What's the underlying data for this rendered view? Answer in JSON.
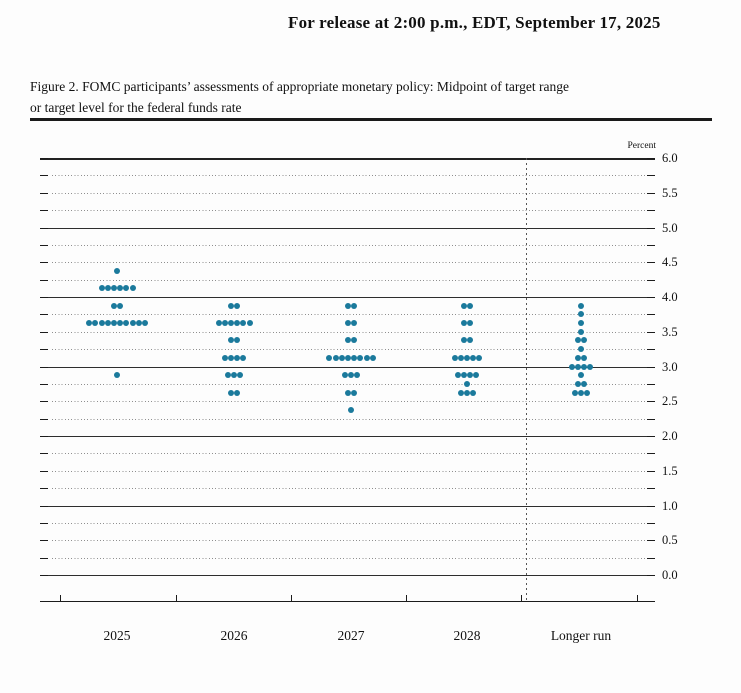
{
  "header": {
    "release_line": "For release at 2:00 p.m., EDT, September 17, 2025"
  },
  "figure": {
    "caption_line1": "Figure 2. FOMC participants’ assessments of appropriate monetary policy: Midpoint of target range",
    "caption_line2": "or target level for the federal funds rate"
  },
  "chart_data": {
    "type": "scatter",
    "title": "FOMC dot plot: midpoint of target range or target level for the federal funds rate",
    "ylabel": "Percent",
    "ylim": [
      0.0,
      6.0
    ],
    "ytick_labels": [
      "6.0",
      "5.5",
      "5.0",
      "4.5",
      "4.0",
      "3.5",
      "3.0",
      "2.5",
      "2.0",
      "1.5",
      "1.0",
      "0.5",
      "0.0"
    ],
    "grid": "dotted line every 0.25, solid line at integer values",
    "legend_position": "none",
    "dot_color": "#1b7a9c",
    "categories": [
      "2025",
      "2026",
      "2027",
      "2028",
      "Longer run"
    ],
    "series": [
      {
        "category": "2025",
        "dots": [
          {
            "rate": 4.375,
            "count": 1
          },
          {
            "rate": 4.125,
            "count": 6
          },
          {
            "rate": 3.875,
            "count": 2
          },
          {
            "rate": 3.625,
            "count": 10
          },
          {
            "rate": 2.875,
            "count": 1
          }
        ]
      },
      {
        "category": "2026",
        "dots": [
          {
            "rate": 3.875,
            "count": 2
          },
          {
            "rate": 3.625,
            "count": 6
          },
          {
            "rate": 3.375,
            "count": 2
          },
          {
            "rate": 3.125,
            "count": 4
          },
          {
            "rate": 2.875,
            "count": 3
          },
          {
            "rate": 2.625,
            "count": 2
          }
        ]
      },
      {
        "category": "2027",
        "dots": [
          {
            "rate": 3.875,
            "count": 2
          },
          {
            "rate": 3.625,
            "count": 2
          },
          {
            "rate": 3.375,
            "count": 2
          },
          {
            "rate": 3.125,
            "count": 8
          },
          {
            "rate": 2.875,
            "count": 3
          },
          {
            "rate": 2.625,
            "count": 2
          },
          {
            "rate": 2.375,
            "count": 1
          }
        ]
      },
      {
        "category": "2028",
        "dots": [
          {
            "rate": 3.875,
            "count": 2
          },
          {
            "rate": 3.625,
            "count": 2
          },
          {
            "rate": 3.375,
            "count": 2
          },
          {
            "rate": 3.125,
            "count": 5
          },
          {
            "rate": 2.875,
            "count": 4
          },
          {
            "rate": 2.75,
            "count": 1
          },
          {
            "rate": 2.625,
            "count": 3
          }
        ]
      },
      {
        "category": "Longer run",
        "dots": [
          {
            "rate": 3.875,
            "count": 1
          },
          {
            "rate": 3.75,
            "count": 1
          },
          {
            "rate": 3.625,
            "count": 1
          },
          {
            "rate": 3.5,
            "count": 1
          },
          {
            "rate": 3.375,
            "count": 2
          },
          {
            "rate": 3.25,
            "count": 1
          },
          {
            "rate": 3.125,
            "count": 2
          },
          {
            "rate": 3.0,
            "count": 4
          },
          {
            "rate": 2.875,
            "count": 1
          },
          {
            "rate": 2.75,
            "count": 2
          },
          {
            "rate": 2.625,
            "count": 3
          }
        ]
      }
    ]
  }
}
